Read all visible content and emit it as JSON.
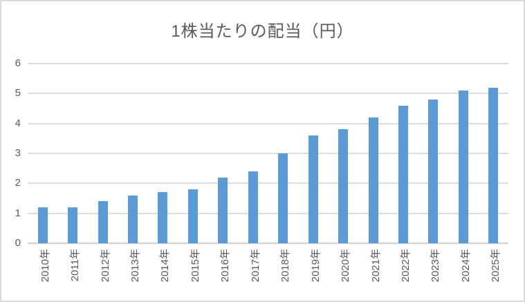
{
  "window": {
    "background": "#ffffff",
    "border_color": "#d9d9d9"
  },
  "chart_data": {
    "type": "bar",
    "title": "1株当たりの配当（円）",
    "categories": [
      "2010年",
      "2011年",
      "2012年",
      "2013年",
      "2014年",
      "2015年",
      "2016年",
      "2017年",
      "2018年",
      "2019年",
      "2020年",
      "2021年",
      "2022年",
      "2023年",
      "2024年",
      "2025年"
    ],
    "values": [
      1.2,
      1.2,
      1.4,
      1.6,
      1.7,
      1.8,
      2.2,
      2.4,
      3.0,
      3.6,
      3.8,
      4.2,
      4.6,
      4.8,
      5.1,
      5.2
    ],
    "xlabel": "",
    "ylabel": "",
    "ylim": [
      0,
      6
    ],
    "yticks": [
      0,
      1,
      2,
      3,
      4,
      5,
      6
    ],
    "grid": true,
    "legend": "none",
    "x_label_rotation_deg": -90,
    "bar_color": "#5b9bd5",
    "gridline_color": "#dcdcdc",
    "axis_line_color": "#d0d0d0",
    "tick_label_color": "#595959",
    "title_color": "#595959"
  }
}
